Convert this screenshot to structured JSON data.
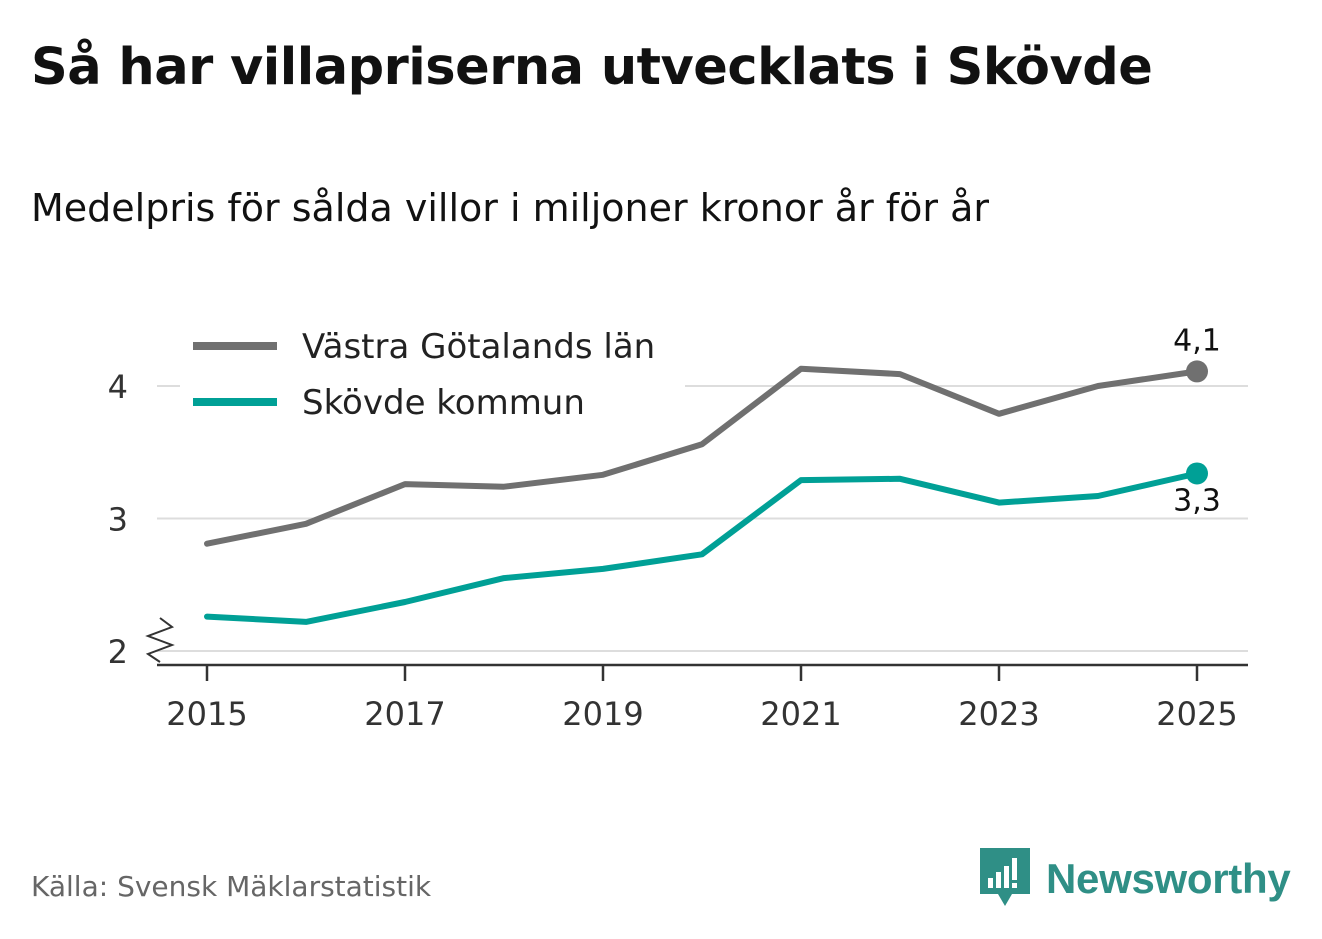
{
  "title": "Så har villapriserna utvecklats i Skövde",
  "subtitle": "Medelpris för sålda villor i miljoner kronor år för år",
  "source": "Källa: Svensk Mäklarstatistik",
  "brand": {
    "name": "Newsworthy",
    "icon": "newsworthy-logo-icon",
    "color": "#2f8f86"
  },
  "chart_data": {
    "type": "line",
    "x": [
      2015,
      2016,
      2017,
      2018,
      2019,
      2020,
      2021,
      2022,
      2023,
      2024,
      2025
    ],
    "series": [
      {
        "name": "Västra Götalands län",
        "color": "#707070",
        "values": [
          2.81,
          2.96,
          3.26,
          3.24,
          3.33,
          3.56,
          4.13,
          4.09,
          3.79,
          4.0,
          4.11
        ],
        "end_label": "4,1"
      },
      {
        "name": "Skövde kommun",
        "color": "#00a096",
        "values": [
          2.26,
          2.22,
          2.37,
          2.55,
          2.62,
          2.73,
          3.29,
          3.3,
          3.12,
          3.17,
          3.34
        ],
        "end_label": "3,3"
      }
    ],
    "x_ticks": [
      "2015",
      "2017",
      "2019",
      "2021",
      "2023",
      "2025"
    ],
    "y_ticks": [
      "2",
      "3",
      "4"
    ],
    "ylim": [
      2,
      4.3
    ],
    "xlim": [
      2014.5,
      2025.5
    ],
    "xlabel": "",
    "ylabel": "",
    "grid": true,
    "y_axis_break": true,
    "legend": "top-left"
  }
}
